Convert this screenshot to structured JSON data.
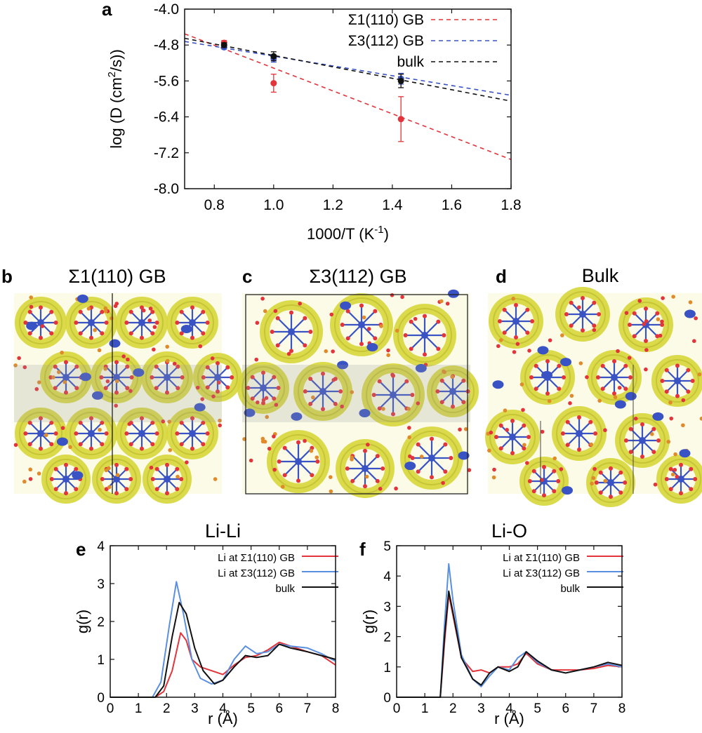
{
  "panel_labels": {
    "a": "a",
    "b": "b",
    "c": "c",
    "d": "d",
    "e": "e",
    "f": "f"
  },
  "structure_titles": {
    "b": "Σ1(110) GB",
    "c": "Σ3(112) GB",
    "d": "Bulk"
  },
  "colors": {
    "red": "#e2343a",
    "blue": "#3a53c4",
    "black": "#111111",
    "lightblue": "#5b8fe0",
    "isosurface": "#d6d63a"
  },
  "chart_data": [
    {
      "type": "scatter",
      "panel": "a",
      "title": "",
      "xlabel": "1000/T (K",
      "xlabel_sup": "-1",
      "xlabel_end": ")",
      "ylabel": "log (D (cm",
      "ylabel_sup": "2",
      "ylabel_end": "/s))",
      "xlim": [
        0.7,
        1.8
      ],
      "ylim": [
        -8.0,
        -4.0
      ],
      "xticks": [
        0.8,
        1.0,
        1.2,
        1.4,
        1.6,
        1.8
      ],
      "xtick_labels": [
        "0.8",
        "1.0",
        "1.2",
        "1.4",
        "1.6",
        "1.8"
      ],
      "yticks": [
        -4.0,
        -4.8,
        -5.6,
        -6.4,
        -7.2,
        -8.0
      ],
      "ytick_labels": [
        "-4.0",
        "-4.8",
        "-5.6",
        "-6.4",
        "-7.2",
        "-8.0"
      ],
      "legend": "top-right",
      "series": [
        {
          "name": "Σ1(110) GB",
          "color": "#e2343a",
          "x": [
            0.833,
            1.0,
            1.429
          ],
          "y": [
            -4.75,
            -5.65,
            -6.45
          ],
          "err": [
            0.05,
            0.2,
            0.5
          ],
          "fit": [
            [
              0.7,
              -4.55
            ],
            [
              1.8,
              -7.35
            ]
          ]
        },
        {
          "name": "Σ3(112) GB",
          "color": "#3a53c4",
          "x": [
            0.833,
            1.0,
            1.429
          ],
          "y": [
            -4.85,
            -5.1,
            -5.55
          ],
          "err": [
            0.04,
            0.08,
            0.12
          ],
          "fit": [
            [
              0.7,
              -4.72
            ],
            [
              1.8,
              -5.92
            ]
          ]
        },
        {
          "name": "bulk",
          "color": "#111111",
          "x": [
            0.833,
            1.0,
            1.429
          ],
          "y": [
            -4.8,
            -5.05,
            -5.6
          ],
          "err": [
            0.05,
            0.1,
            0.15
          ],
          "fit": [
            [
              0.7,
              -4.65
            ],
            [
              1.8,
              -6.05
            ]
          ]
        }
      ]
    },
    {
      "type": "line",
      "panel": "e",
      "title": "Li-Li",
      "xlabel": "r (Å)",
      "ylabel": "g(r)",
      "xlim": [
        0,
        8
      ],
      "ylim": [
        0,
        4
      ],
      "xticks": [
        0,
        1,
        2,
        3,
        4,
        5,
        6,
        7,
        8
      ],
      "xtick_labels": [
        "0",
        "1",
        "2",
        "3",
        "4",
        "5",
        "6",
        "7",
        "8"
      ],
      "yticks": [
        0,
        1,
        2,
        3,
        4
      ],
      "ytick_labels": [
        "0",
        "1",
        "2",
        "3",
        "4"
      ],
      "legend": "top-right",
      "series": [
        {
          "name": "Li at Σ1(110) GB",
          "color": "#e2343a",
          "x": [
            0,
            1.6,
            1.9,
            2.2,
            2.5,
            2.7,
            2.9,
            3.2,
            3.6,
            4.0,
            4.4,
            4.8,
            5.2,
            5.6,
            6.0,
            6.4,
            7.0,
            7.5,
            8.0
          ],
          "y": [
            0,
            0,
            0.15,
            0.7,
            1.7,
            1.5,
            1.0,
            0.8,
            0.7,
            0.6,
            0.85,
            1.05,
            1.1,
            1.25,
            1.45,
            1.35,
            1.2,
            1.1,
            0.85
          ]
        },
        {
          "name": "Li at Σ3(112) GB",
          "color": "#5b8fe0",
          "x": [
            0,
            1.5,
            1.8,
            2.1,
            2.35,
            2.6,
            2.9,
            3.2,
            3.6,
            4.0,
            4.4,
            4.8,
            5.2,
            5.6,
            6.0,
            6.4,
            7.0,
            7.5,
            8.0
          ],
          "y": [
            0,
            0,
            0.4,
            1.9,
            3.05,
            2.2,
            1.0,
            0.5,
            0.35,
            0.45,
            1.0,
            1.35,
            1.15,
            1.2,
            1.4,
            1.35,
            1.3,
            1.15,
            0.95
          ]
        },
        {
          "name": "bulk",
          "color": "#111111",
          "x": [
            0,
            1.6,
            1.9,
            2.2,
            2.45,
            2.7,
            3.0,
            3.3,
            3.7,
            4.0,
            4.4,
            4.8,
            5.2,
            5.6,
            6.0,
            6.4,
            7.0,
            7.5,
            8.0
          ],
          "y": [
            0,
            0,
            0.3,
            1.6,
            2.5,
            2.2,
            1.3,
            0.7,
            0.35,
            0.45,
            0.8,
            1.1,
            1.05,
            1.1,
            1.4,
            1.3,
            1.2,
            1.1,
            1.0
          ]
        }
      ]
    },
    {
      "type": "line",
      "panel": "f",
      "title": "Li-O",
      "xlabel": "r (Å)",
      "ylabel": "g(r)",
      "xlim": [
        0,
        8
      ],
      "ylim": [
        0,
        5
      ],
      "xticks": [
        0,
        1,
        2,
        3,
        4,
        5,
        6,
        7,
        8
      ],
      "xtick_labels": [
        "0",
        "1",
        "2",
        "3",
        "4",
        "5",
        "6",
        "7",
        "8"
      ],
      "yticks": [
        0,
        1,
        2,
        3,
        4,
        5
      ],
      "ytick_labels": [
        "0",
        "1",
        "2",
        "3",
        "4",
        "5"
      ],
      "legend": "top-right",
      "series": [
        {
          "name": "Li at Σ1(110) GB",
          "color": "#e2343a",
          "x": [
            0,
            1.55,
            1.7,
            1.85,
            2.0,
            2.3,
            2.7,
            3.0,
            3.3,
            3.6,
            4.0,
            4.3,
            4.6,
            5.0,
            5.5,
            6.0,
            6.5,
            7.0,
            7.5,
            8.0
          ],
          "y": [
            0,
            0,
            1.8,
            3.4,
            2.7,
            1.3,
            0.85,
            0.9,
            0.8,
            1.0,
            1.0,
            1.1,
            1.45,
            1.1,
            0.9,
            0.9,
            0.9,
            0.95,
            1.05,
            1.0
          ]
        },
        {
          "name": "Li at Σ3(112) GB",
          "color": "#5b8fe0",
          "x": [
            0,
            1.55,
            1.7,
            1.85,
            2.0,
            2.3,
            2.7,
            3.0,
            3.3,
            3.6,
            4.0,
            4.3,
            4.6,
            5.0,
            5.5,
            6.0,
            6.5,
            7.0,
            7.5,
            8.0
          ],
          "y": [
            0,
            0,
            2.4,
            4.4,
            3.2,
            1.4,
            0.6,
            0.35,
            0.7,
            1.0,
            0.9,
            1.3,
            1.5,
            1.15,
            0.9,
            0.8,
            0.9,
            1.0,
            1.1,
            1.0
          ]
        },
        {
          "name": "bulk",
          "color": "#111111",
          "x": [
            0,
            1.55,
            1.7,
            1.85,
            2.0,
            2.3,
            2.7,
            3.0,
            3.3,
            3.6,
            4.0,
            4.3,
            4.6,
            5.0,
            5.5,
            6.0,
            6.5,
            7.0,
            7.5,
            8.0
          ],
          "y": [
            0,
            0,
            2.0,
            3.5,
            2.8,
            1.3,
            0.6,
            0.4,
            0.8,
            1.0,
            0.85,
            1.0,
            1.5,
            1.2,
            0.9,
            0.8,
            0.9,
            1.0,
            1.15,
            1.05
          ]
        }
      ]
    }
  ]
}
